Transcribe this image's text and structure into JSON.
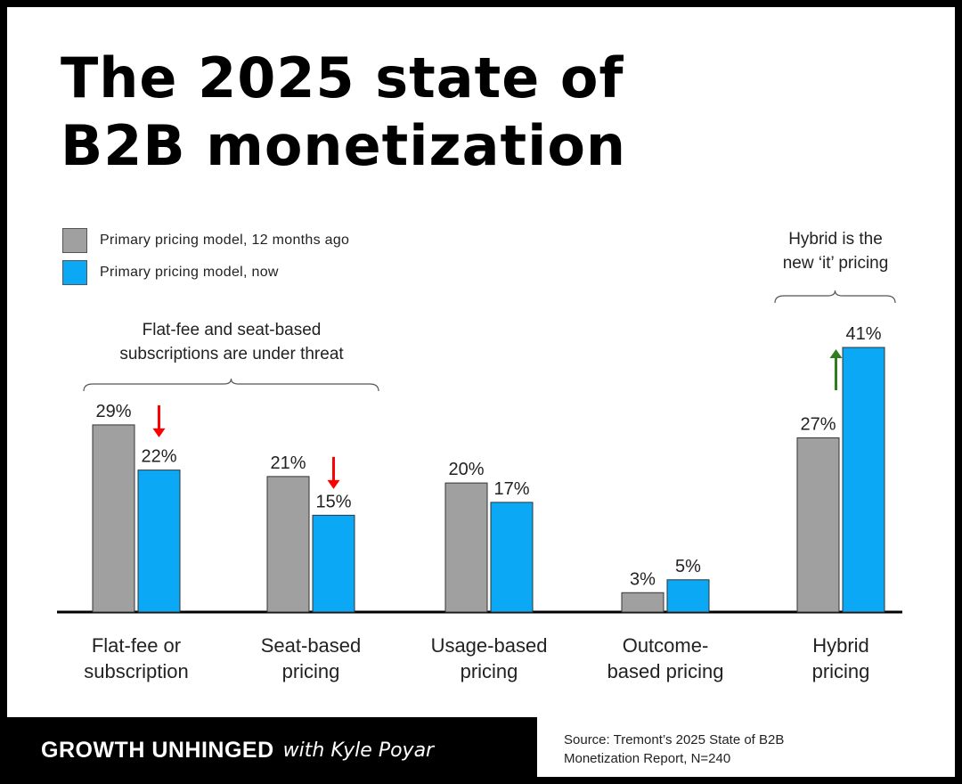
{
  "title": "The 2025 state of B2B monetization",
  "legend": [
    {
      "label": "Primary pricing model, 12 months ago",
      "color": "#a0a0a0"
    },
    {
      "label": "Primary pricing model, now",
      "color": "#0aa8f5"
    }
  ],
  "annotations": {
    "left_brace_text": [
      "Flat-fee and seat-based",
      "subscriptions are under threat"
    ],
    "right_brace_text": [
      "Hybrid is the",
      "new ‘it’ pricing"
    ]
  },
  "colors": {
    "past": "#a0a0a0",
    "now": "#0aa8f5",
    "down_arrow": "#ff0000",
    "up_arrow": "#2e7d1e"
  },
  "chart_data": {
    "type": "bar",
    "categories": [
      [
        "Flat-fee or",
        "subscription"
      ],
      [
        "Seat-based",
        "pricing"
      ],
      [
        "Usage-based",
        "pricing"
      ],
      [
        "Outcome-",
        "based pricing"
      ],
      [
        "Hybrid",
        "pricing"
      ]
    ],
    "series": [
      {
        "name": "Primary pricing model, 12 months ago",
        "values": [
          29,
          21,
          20,
          3,
          27
        ]
      },
      {
        "name": "Primary pricing model, now",
        "values": [
          22,
          15,
          17,
          5,
          41
        ]
      }
    ],
    "value_suffix": "%",
    "trend_arrows": [
      "down",
      "down",
      null,
      null,
      "up"
    ],
    "ylim": [
      0,
      41
    ]
  },
  "footer": {
    "brand": "GROWTH UNHINGED",
    "with": "with Kyle Poyar",
    "source": "Source: Tremont’s 2025 State of B2B\nMonetization Report, N=240"
  }
}
